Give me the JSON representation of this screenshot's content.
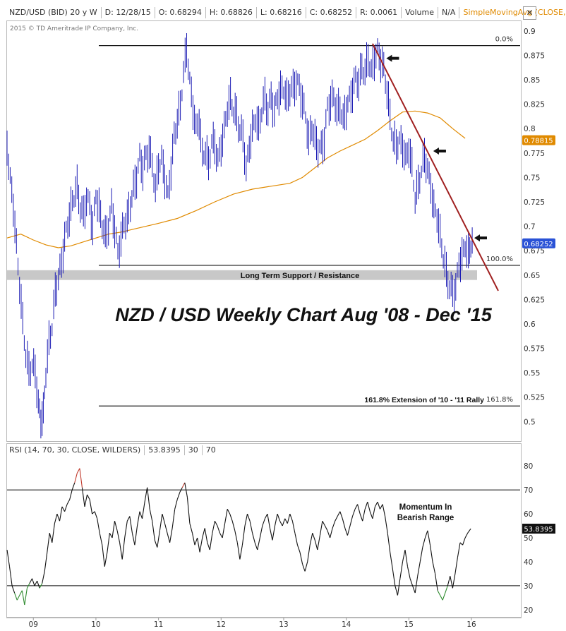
{
  "header": {
    "symbol": "NZD/USD (BID) 20 y W",
    "date": "D: 12/28/15",
    "open": "O: 0.68294",
    "high": "H: 0.68826",
    "low": "L: 0.68216",
    "close": "C: 0.68252",
    "range": "R: 0.0061",
    "volume_label": "Volume",
    "volume_value": "N/A",
    "ma_label": "SimpleMovingAvg (CLOSE,...",
    "close_symbol": "✕"
  },
  "copyright": "2015 © TD Ameritrade IP Company, Inc.",
  "colors": {
    "price": "#1c1cb4",
    "ma": "#e08a00",
    "trendline": "#a02020",
    "support_band": "#c8c8c8",
    "rsi": "#111111",
    "rsi_overbought": "#c0392b",
    "rsi_oversold": "#2e8b2e",
    "last_price_badge": "#2a52d6"
  },
  "chart_data": [
    {
      "type": "line",
      "title": "NZD / USD Weekly Chart Aug '08 - Dec '15",
      "xlabel": "",
      "ylabel": "",
      "x_ticks": [
        "09",
        "10",
        "11",
        "12",
        "13",
        "14",
        "15",
        "16"
      ],
      "x_tick_values": [
        2009,
        2010,
        2011,
        2012,
        2013,
        2014,
        2015,
        2016
      ],
      "x_range": [
        2008.58,
        2016.0
      ],
      "y_ticks": [
        "0.9",
        "0.875",
        "0.85",
        "0.825",
        "0.8",
        "0.775",
        "0.75",
        "0.725",
        "0.7",
        "0.675",
        "0.65",
        "0.625",
        "0.6",
        "0.575",
        "0.55",
        "0.525",
        "0.5"
      ],
      "ylim": [
        0.48,
        0.91
      ],
      "grid": false,
      "series": [
        {
          "kind": "price",
          "x": [
            2008.58,
            2008.63,
            2008.68,
            2008.73,
            2008.78,
            2008.83,
            2008.88,
            2008.93,
            2008.98,
            2009.03,
            2009.08,
            2009.12,
            2009.16,
            2009.2,
            2009.25,
            2009.3,
            2009.35,
            2009.4,
            2009.45,
            2009.5,
            2009.55,
            2009.6,
            2009.65,
            2009.7,
            2009.75,
            2009.8,
            2009.85,
            2009.9,
            2009.95,
            2010.0,
            2010.05,
            2010.1,
            2010.15,
            2010.2,
            2010.25,
            2010.3,
            2010.35,
            2010.4,
            2010.45,
            2010.5,
            2010.55,
            2010.6,
            2010.65,
            2010.7,
            2010.75,
            2010.8,
            2010.85,
            2010.9,
            2010.95,
            2011.0,
            2011.05,
            2011.1,
            2011.15,
            2011.2,
            2011.25,
            2011.3,
            2011.35,
            2011.4,
            2011.45,
            2011.5,
            2011.55,
            2011.6,
            2011.65,
            2011.7,
            2011.75,
            2011.8,
            2011.85,
            2011.9,
            2011.95,
            2012.0,
            2012.05,
            2012.1,
            2012.15,
            2012.2,
            2012.25,
            2012.3,
            2012.35,
            2012.4,
            2012.45,
            2012.5,
            2012.55,
            2012.6,
            2012.65,
            2012.7,
            2012.75,
            2012.8,
            2012.85,
            2012.9,
            2012.95,
            2013.0,
            2013.05,
            2013.1,
            2013.15,
            2013.2,
            2013.25,
            2013.3,
            2013.35,
            2013.4,
            2013.45,
            2013.5,
            2013.55,
            2013.6,
            2013.65,
            2013.7,
            2013.75,
            2013.8,
            2013.85,
            2013.9,
            2013.95,
            2014.0,
            2014.05,
            2014.1,
            2014.15,
            2014.2,
            2014.25,
            2014.3,
            2014.35,
            2014.4,
            2014.45,
            2014.5,
            2014.55,
            2014.6,
            2014.65,
            2014.7,
            2014.75,
            2014.8,
            2014.85,
            2014.9,
            2014.95,
            2015.0,
            2015.05,
            2015.1,
            2015.15,
            2015.2,
            2015.25,
            2015.3,
            2015.35,
            2015.4,
            2015.45,
            2015.5,
            2015.55,
            2015.6,
            2015.65,
            2015.7,
            2015.75,
            2015.8,
            2015.85,
            2015.9,
            2015.95,
            2015.99
          ],
          "y": [
            0.78,
            0.75,
            0.72,
            0.68,
            0.64,
            0.6,
            0.57,
            0.55,
            0.56,
            0.55,
            0.52,
            0.5,
            0.51,
            0.55,
            0.58,
            0.6,
            0.63,
            0.65,
            0.66,
            0.69,
            0.7,
            0.72,
            0.73,
            0.74,
            0.72,
            0.71,
            0.73,
            0.72,
            0.7,
            0.73,
            0.72,
            0.7,
            0.69,
            0.7,
            0.72,
            0.7,
            0.67,
            0.69,
            0.7,
            0.71,
            0.72,
            0.74,
            0.75,
            0.77,
            0.76,
            0.77,
            0.78,
            0.76,
            0.74,
            0.76,
            0.77,
            0.75,
            0.73,
            0.76,
            0.79,
            0.81,
            0.82,
            0.86,
            0.88,
            0.85,
            0.82,
            0.8,
            0.81,
            0.77,
            0.78,
            0.76,
            0.79,
            0.78,
            0.77,
            0.78,
            0.8,
            0.82,
            0.83,
            0.82,
            0.81,
            0.8,
            0.79,
            0.76,
            0.78,
            0.8,
            0.81,
            0.8,
            0.82,
            0.83,
            0.82,
            0.83,
            0.82,
            0.83,
            0.84,
            0.84,
            0.83,
            0.84,
            0.84,
            0.85,
            0.84,
            0.83,
            0.81,
            0.79,
            0.8,
            0.79,
            0.78,
            0.78,
            0.79,
            0.82,
            0.83,
            0.83,
            0.82,
            0.82,
            0.81,
            0.82,
            0.83,
            0.84,
            0.85,
            0.85,
            0.86,
            0.86,
            0.87,
            0.86,
            0.87,
            0.88,
            0.87,
            0.86,
            0.84,
            0.81,
            0.79,
            0.78,
            0.79,
            0.78,
            0.77,
            0.78,
            0.76,
            0.73,
            0.74,
            0.76,
            0.77,
            0.76,
            0.74,
            0.72,
            0.71,
            0.69,
            0.67,
            0.65,
            0.64,
            0.63,
            0.64,
            0.66,
            0.67,
            0.68,
            0.67,
            0.6825
          ]
        },
        {
          "kind": "moving_average",
          "x": [
            2008.58,
            2008.8,
            2009.0,
            2009.2,
            2009.4,
            2009.6,
            2009.8,
            2010.0,
            2010.2,
            2010.4,
            2010.6,
            2010.8,
            2011.0,
            2011.3,
            2011.6,
            2011.9,
            2012.2,
            2012.5,
            2012.8,
            2013.1,
            2013.3,
            2013.5,
            2013.7,
            2013.9,
            2014.1,
            2014.3,
            2014.5,
            2014.7,
            2014.9,
            2015.1,
            2015.3,
            2015.5,
            2015.7,
            2015.9
          ],
          "y": [
            0.688,
            0.692,
            0.686,
            0.681,
            0.678,
            0.68,
            0.684,
            0.688,
            0.692,
            0.694,
            0.697,
            0.7,
            0.703,
            0.708,
            0.716,
            0.725,
            0.733,
            0.738,
            0.741,
            0.744,
            0.75,
            0.76,
            0.77,
            0.777,
            0.783,
            0.789,
            0.798,
            0.808,
            0.817,
            0.818,
            0.816,
            0.811,
            0.8,
            0.79
          ]
        }
      ],
      "reference_lines": [
        {
          "y": 0.885,
          "label": "0.0%"
        },
        {
          "y": 0.66,
          "label": "100.0%"
        },
        {
          "y": 0.516,
          "label": "161.8%"
        }
      ],
      "support_band": {
        "y_top": 0.655,
        "y_bottom": 0.645,
        "label": "Long Term Support / Resistance"
      },
      "trendline": {
        "x": [
          2014.42,
          2015.99
        ],
        "y": [
          0.887,
          0.634
        ]
      },
      "extension_label": "161.8% Extension of '10 - '11 Rally",
      "arrows_at": [
        {
          "x": 2014.55,
          "y": 0.872
        },
        {
          "x": 2015.3,
          "y": 0.777
        },
        {
          "x": 2016.0,
          "y": 0.688
        }
      ],
      "badges": [
        {
          "label": "0.78815",
          "y": 0.7881,
          "color": "#e08a00"
        },
        {
          "label": "0.68252",
          "y": 0.6825,
          "color": "#2a52d6"
        }
      ]
    },
    {
      "type": "line",
      "title": "RSI (14, 70, 30, CLOSE, WILDERS)",
      "header_values": [
        "53.8395",
        "30",
        "70"
      ],
      "xlabel": "",
      "ylabel": "",
      "x_ticks": [
        "09",
        "10",
        "11",
        "12",
        "13",
        "14",
        "15",
        "16"
      ],
      "x_tick_values": [
        2009,
        2010,
        2011,
        2012,
        2013,
        2014,
        2015,
        2016
      ],
      "x_range": [
        2008.58,
        2016.0
      ],
      "y_ticks": [
        "80",
        "70",
        "60",
        "50",
        "40",
        "30",
        "20"
      ],
      "ylim": [
        17,
        83
      ],
      "overbought": 70,
      "oversold": 30,
      "annotation": [
        "Momentum In",
        "Bearish Range"
      ],
      "last_value_badge": "53.8395",
      "series": [
        {
          "name": "RSI",
          "x": [
            2008.58,
            2008.62,
            2008.66,
            2008.7,
            2008.74,
            2008.78,
            2008.82,
            2008.86,
            2008.9,
            2008.94,
            2008.98,
            2009.02,
            2009.06,
            2009.1,
            2009.14,
            2009.18,
            2009.22,
            2009.26,
            2009.3,
            2009.34,
            2009.38,
            2009.42,
            2009.46,
            2009.5,
            2009.54,
            2009.58,
            2009.62,
            2009.66,
            2009.7,
            2009.74,
            2009.78,
            2009.82,
            2009.86,
            2009.9,
            2009.94,
            2009.98,
            2010.02,
            2010.06,
            2010.1,
            2010.14,
            2010.18,
            2010.22,
            2010.26,
            2010.3,
            2010.34,
            2010.38,
            2010.42,
            2010.46,
            2010.5,
            2010.54,
            2010.58,
            2010.62,
            2010.66,
            2010.7,
            2010.74,
            2010.78,
            2010.82,
            2010.86,
            2010.9,
            2010.94,
            2010.98,
            2011.02,
            2011.06,
            2011.1,
            2011.14,
            2011.18,
            2011.22,
            2011.26,
            2011.3,
            2011.34,
            2011.38,
            2011.42,
            2011.46,
            2011.5,
            2011.54,
            2011.58,
            2011.62,
            2011.66,
            2011.7,
            2011.74,
            2011.78,
            2011.82,
            2011.86,
            2011.9,
            2011.94,
            2011.98,
            2012.02,
            2012.06,
            2012.1,
            2012.14,
            2012.18,
            2012.22,
            2012.26,
            2012.3,
            2012.34,
            2012.38,
            2012.42,
            2012.46,
            2012.5,
            2012.54,
            2012.58,
            2012.62,
            2012.66,
            2012.7,
            2012.74,
            2012.78,
            2012.82,
            2012.86,
            2012.9,
            2012.94,
            2012.98,
            2013.02,
            2013.06,
            2013.1,
            2013.14,
            2013.18,
            2013.22,
            2013.26,
            2013.3,
            2013.34,
            2013.38,
            2013.42,
            2013.46,
            2013.5,
            2013.54,
            2013.58,
            2013.62,
            2013.66,
            2013.7,
            2013.74,
            2013.78,
            2013.82,
            2013.86,
            2013.9,
            2013.94,
            2013.98,
            2014.02,
            2014.06,
            2014.1,
            2014.14,
            2014.18,
            2014.22,
            2014.26,
            2014.3,
            2014.34,
            2014.38,
            2014.42,
            2014.46,
            2014.5,
            2014.54,
            2014.58,
            2014.62,
            2014.66,
            2014.7,
            2014.74,
            2014.78,
            2014.82,
            2014.86,
            2014.9,
            2014.94,
            2014.98,
            2015.02,
            2015.06,
            2015.1,
            2015.14,
            2015.18,
            2015.22,
            2015.26,
            2015.3,
            2015.34,
            2015.38,
            2015.42,
            2015.46,
            2015.5,
            2015.54,
            2015.58,
            2015.62,
            2015.66,
            2015.7,
            2015.74,
            2015.78,
            2015.82,
            2015.86,
            2015.9,
            2015.94,
            2015.99
          ],
          "y": [
            45,
            38,
            30,
            27,
            24,
            26,
            28,
            22,
            29,
            31,
            33,
            30,
            32,
            29,
            31,
            36,
            44,
            52,
            48,
            56,
            60,
            57,
            63,
            61,
            64,
            66,
            70,
            73,
            77,
            79,
            71,
            63,
            68,
            66,
            60,
            61,
            58,
            52,
            47,
            38,
            44,
            52,
            50,
            57,
            53,
            48,
            41,
            50,
            57,
            59,
            52,
            47,
            55,
            61,
            58,
            65,
            71,
            62,
            57,
            49,
            46,
            53,
            60,
            56,
            52,
            48,
            54,
            62,
            66,
            69,
            71,
            73,
            67,
            56,
            52,
            47,
            50,
            44,
            50,
            54,
            48,
            45,
            52,
            57,
            55,
            52,
            50,
            56,
            62,
            60,
            57,
            53,
            48,
            41,
            47,
            55,
            60,
            57,
            52,
            48,
            45,
            50,
            55,
            58,
            60,
            54,
            49,
            55,
            60,
            57,
            55,
            58,
            56,
            60,
            57,
            52,
            47,
            44,
            39,
            36,
            40,
            47,
            52,
            49,
            45,
            51,
            57,
            55,
            53,
            50,
            54,
            57,
            59,
            61,
            58,
            54,
            51,
            55,
            59,
            62,
            64,
            60,
            57,
            62,
            65,
            61,
            58,
            63,
            65,
            62,
            64,
            59,
            52,
            44,
            37,
            30,
            26,
            33,
            40,
            45,
            38,
            33,
            30,
            27,
            34,
            40,
            46,
            50,
            53,
            47,
            40,
            35,
            28,
            26,
            24,
            27,
            30,
            34,
            29,
            35,
            42,
            48,
            47,
            50,
            52,
            53.8
          ]
        }
      ]
    }
  ]
}
